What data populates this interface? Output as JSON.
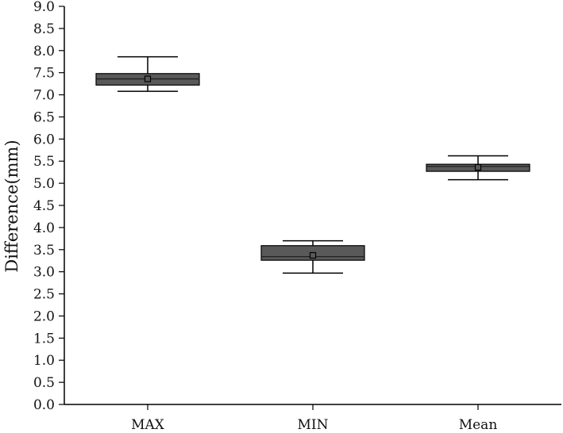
{
  "chart_data": {
    "type": "box",
    "title": "",
    "xlabel": "",
    "ylabel": "Difference(mm)",
    "ylim": [
      0,
      9
    ],
    "yticks": [
      0,
      0.5,
      1,
      1.5,
      2,
      2.5,
      3,
      3.5,
      4,
      4.5,
      5,
      5.5,
      6,
      6.5,
      7,
      7.5,
      8,
      8.5,
      9
    ],
    "ytick_labels": [
      "0.0",
      "0.5",
      "1.0",
      "1.5",
      "2.0",
      "2.5",
      "3.0",
      "3.5",
      "4.0",
      "4.5",
      "5.0",
      "5.5",
      "6.0",
      "6.5",
      "7.0",
      "7.5",
      "8.0",
      "8.5",
      "9.0"
    ],
    "categories": [
      "MAX",
      "MIN",
      "Mean"
    ],
    "boxes": [
      {
        "category": "MAX",
        "min": 7.08,
        "q1": 7.22,
        "median": 7.36,
        "q3": 7.48,
        "max": 7.86,
        "mean": 7.36
      },
      {
        "category": "MIN",
        "min": 2.97,
        "q1": 3.26,
        "median": 3.34,
        "q3": 3.59,
        "max": 3.7,
        "mean": 3.37
      },
      {
        "category": "Mean",
        "min": 5.08,
        "q1": 5.27,
        "median": 5.38,
        "q3": 5.43,
        "max": 5.62,
        "mean": 5.36
      }
    ],
    "grid": false,
    "legend": "none",
    "colors": {
      "box_fill": "#595959",
      "stroke": "#000000",
      "median": "#1a1a1a"
    }
  }
}
